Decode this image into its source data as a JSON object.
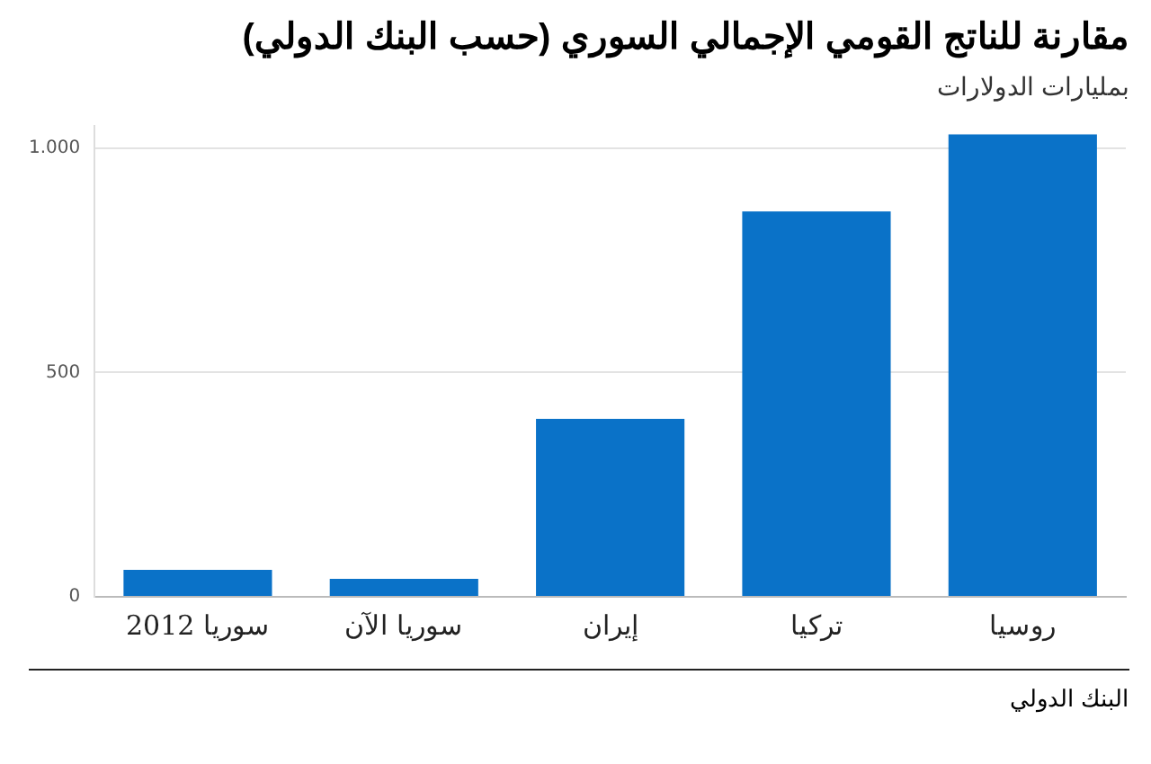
{
  "chart_data": {
    "type": "bar",
    "title": "مقارنة للناتج القومي الإجمالي السوري (حسب البنك الدولي)",
    "subtitle": "بمليارات الدولارات",
    "categories": [
      "سوريا 2012",
      "سوريا الآن",
      "إيران",
      "تركيا",
      "روسيا"
    ],
    "values": [
      60,
      40,
      397,
      859,
      1031
    ],
    "color": "#0a72c8",
    "ylim": [
      0,
      1050
    ],
    "yticks": [
      0,
      500,
      {
        "value": 1000,
        "label": "1.000"
      }
    ],
    "grid": "y",
    "annotations": [
      "البنك الدولي"
    ]
  }
}
